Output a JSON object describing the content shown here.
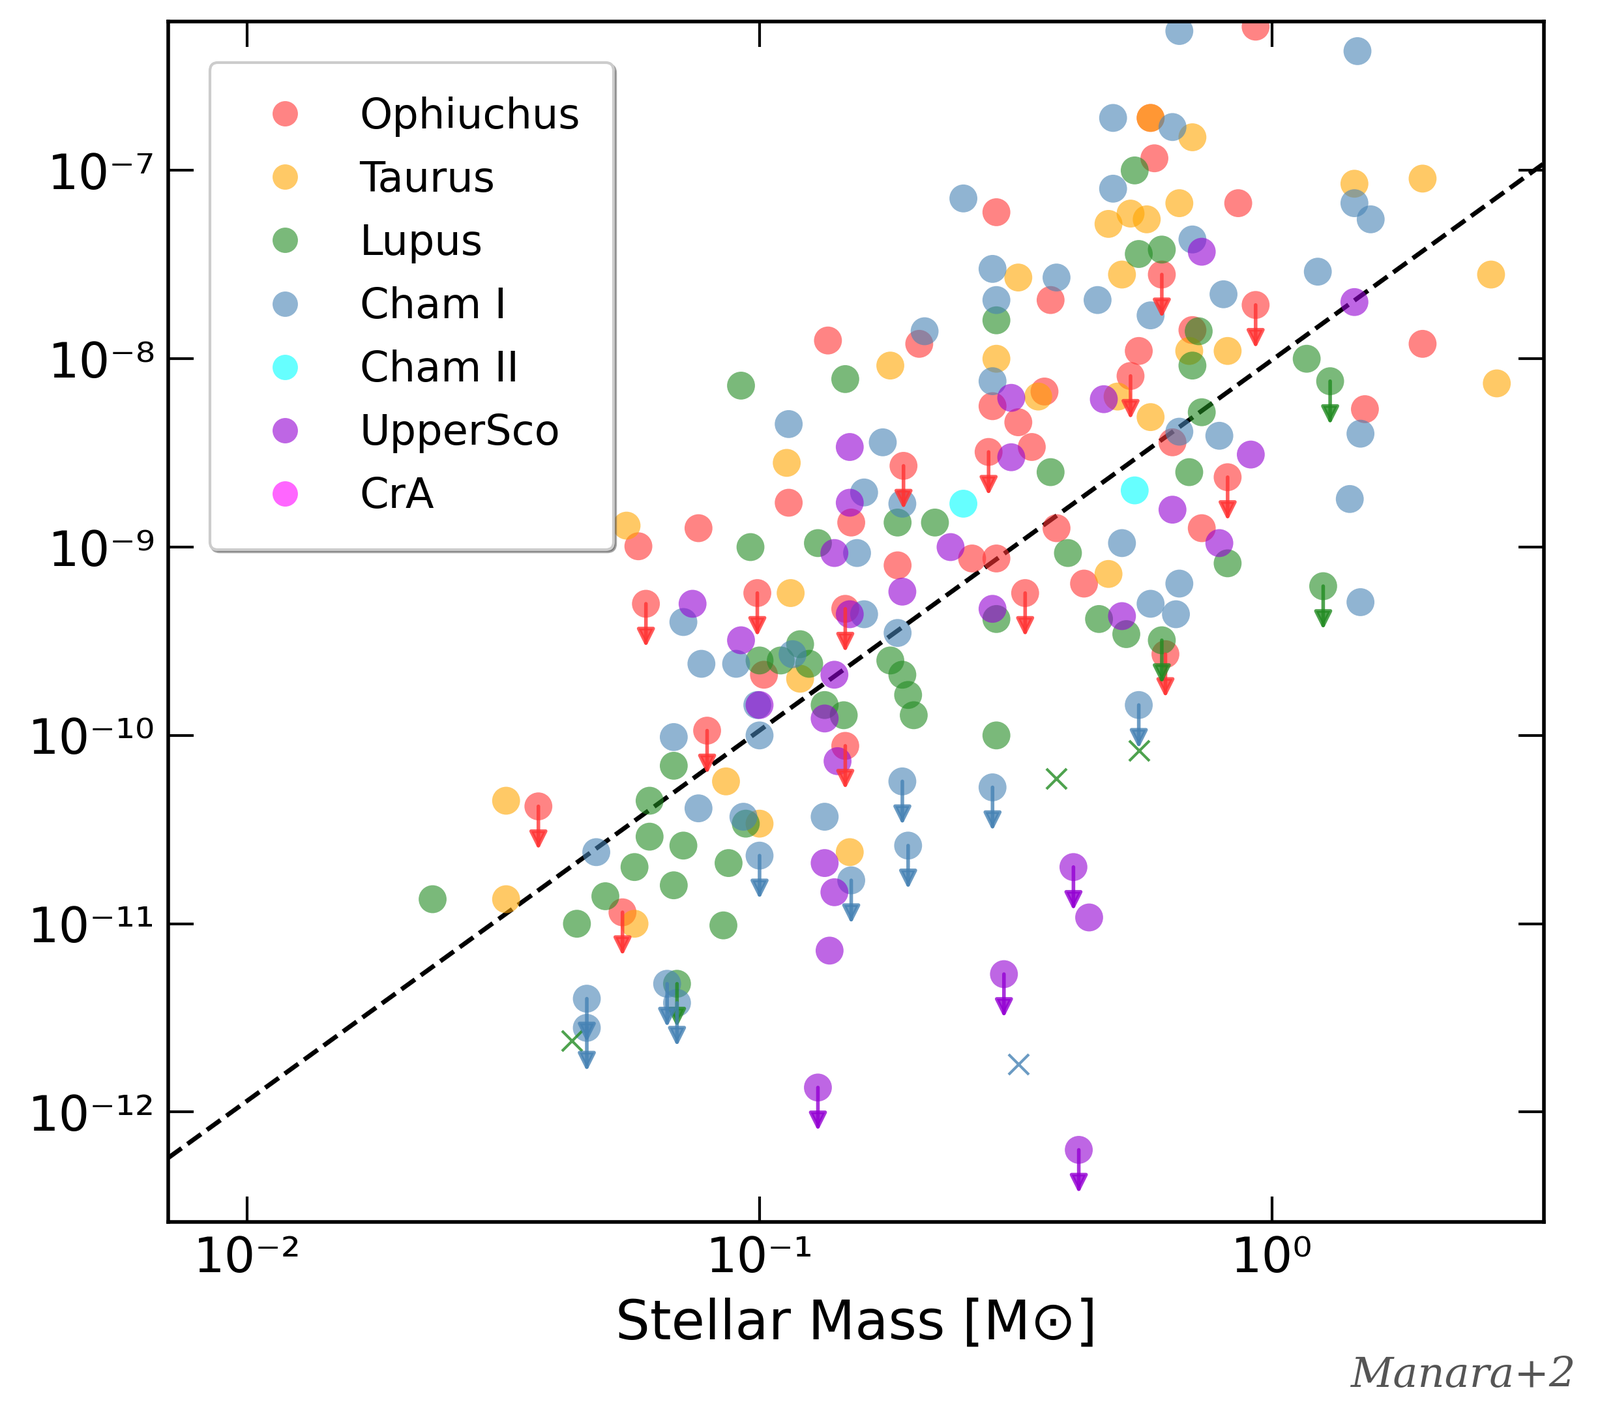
{
  "chart_data": {
    "type": "scatter",
    "x_label": "Stellar Mass [M⊙]",
    "annotations": [
      "Manara+2"
    ],
    "log": true,
    "legend": "upper left",
    "xlim": [
      0.007,
      3.4
    ],
    "ylim": [
      2.6e-13,
      6.2e-07
    ],
    "xticks": [
      {
        "value": 0.01,
        "label": "10⁻²"
      },
      {
        "value": 0.1,
        "label": "10⁻¹"
      },
      {
        "value": 1,
        "label": "10⁰"
      }
    ],
    "yticks": [
      {
        "value": 1e-12,
        "label": "10⁻¹²"
      },
      {
        "value": 1e-11,
        "label": "10⁻¹¹"
      },
      {
        "value": 1e-10,
        "label": "10⁻¹⁰"
      },
      {
        "value": 1e-09,
        "label": "10⁻⁹"
      },
      {
        "value": 1e-08,
        "label": "10⁻⁸"
      },
      {
        "value": 1e-07,
        "label": "10⁻⁷"
      }
    ],
    "series": [
      {
        "name": "Ophiuchus",
        "color": "#ff3333",
        "x": [
          0.93,
          0.29,
          0.86,
          0.59,
          0.58,
          0.37,
          0.136,
          0.205,
          0.36,
          0.285,
          0.32,
          0.34,
          0.114,
          0.151,
          0.076,
          0.058,
          0.26,
          0.29,
          0.186,
          0.43,
          0.38,
          0.55,
          0.7,
          0.64,
          0.73,
          1.52,
          1.97,
          0.102
        ],
        "values": [
          5.8e-07,
          6e-08,
          6.7e-08,
          1.16e-07,
          1.9e-07,
          2.05e-08,
          1.25e-08,
          1.2e-08,
          6.7e-09,
          5.6e-09,
          4.6e-09,
          3.4e-09,
          1.72e-09,
          1.35e-09,
          1.26e-09,
          1.01e-09,
          8.7e-10,
          8.7e-10,
          8e-10,
          6.4e-10,
          1.26e-09,
          1.1e-08,
          1.42e-08,
          3.6e-09,
          1.26e-09,
          5.4e-09,
          1.2e-08,
          2.1e-10
        ],
        "upper_limit_x": [
          0.06,
          0.037,
          0.079,
          0.099,
          0.191,
          0.28,
          0.33,
          0.93,
          0.82,
          0.61,
          0.53,
          0.147,
          0.147,
          0.62,
          0.054
        ],
        "upper_limit_values": [
          5e-10,
          4.2e-11,
          1.06e-10,
          5.7e-10,
          2.7e-09,
          3.2e-09,
          5.7e-10,
          1.93e-08,
          2.35e-09,
          2.8e-08,
          8.1e-09,
          4.7e-10,
          8.8e-11,
          2.7e-10,
          1.15e-11
        ]
      },
      {
        "name": "Taurus",
        "color": "#ffa500",
        "x": [
          0.055,
          0.032,
          0.032,
          0.057,
          0.086,
          0.1,
          0.115,
          0.12,
          0.113,
          0.18,
          0.32,
          0.29,
          0.35,
          0.48,
          0.53,
          0.57,
          0.51,
          0.58,
          0.7,
          0.66,
          0.5,
          0.58,
          0.69,
          0.82,
          1.45,
          1.97,
          2.68,
          2.75,
          0.48,
          0.15
        ],
        "values": [
          1.3e-09,
          4.5e-11,
          1.35e-11,
          1e-11,
          5.7e-11,
          3.4e-11,
          5.7e-10,
          2e-10,
          2.8e-09,
          9.2e-09,
          2.7e-08,
          1e-08,
          6.3e-09,
          5.2e-08,
          5.9e-08,
          5.5e-08,
          2.8e-08,
          1.9e-07,
          1.5e-07,
          6.7e-08,
          6.3e-09,
          4.9e-09,
          1.1e-08,
          1.1e-08,
          8.5e-08,
          9.05e-08,
          2.8e-08,
          7.4e-09,
          7.2e-10,
          2.4e-11
        ],
        "upper_limit_x": [],
        "upper_limit_values": []
      },
      {
        "name": "Lupus",
        "color": "#228b22",
        "x": [
          0.023,
          0.044,
          0.05,
          0.085,
          0.061,
          0.068,
          0.071,
          0.068,
          0.057,
          0.061,
          0.087,
          0.094,
          0.1,
          0.11,
          0.12,
          0.125,
          0.13,
          0.096,
          0.092,
          0.147,
          0.134,
          0.146,
          0.18,
          0.19,
          0.195,
          0.2,
          0.186,
          0.22,
          0.29,
          0.29,
          0.29,
          0.37,
          0.4,
          0.46,
          0.52,
          0.54,
          0.55,
          0.61,
          0.7,
          0.72,
          0.69,
          0.73,
          0.82,
          1.17
        ],
        "values": [
          1.35e-11,
          1e-11,
          1.4e-11,
          9.8e-12,
          4.5e-11,
          6.9e-11,
          2.6e-11,
          1.6e-11,
          2e-11,
          2.9e-11,
          2.1e-11,
          3.4e-11,
          2.5e-10,
          2.5e-10,
          3.05e-10,
          2.4e-10,
          1.05e-09,
          1e-09,
          7.2e-09,
          7.8e-09,
          1.45e-10,
          1.28e-10,
          2.5e-10,
          2.1e-10,
          1.64e-10,
          1.28e-10,
          1.35e-09,
          1.35e-09,
          1.6e-08,
          4.15e-10,
          1e-10,
          2.5e-09,
          9.3e-10,
          4.15e-10,
          3.45e-10,
          1e-07,
          3.6e-08,
          3.8e-08,
          9.2e-09,
          1.4e-08,
          2.5e-09,
          5.2e-09,
          8.2e-10,
          1e-08
        ],
        "upper_limit_x": [
          0.069,
          1.26,
          1.3,
          0.61
        ],
        "upper_limit_values": [
          4.8e-12,
          6.2e-10,
          7.6e-09,
          3.2e-10
        ]
      },
      {
        "name": "Cham I",
        "color": "#4682b4",
        "x": [
          0.66,
          1.47,
          0.49,
          0.64,
          0.25,
          0.49,
          1.45,
          1.56,
          0.285,
          0.29,
          0.38,
          0.457,
          0.7,
          0.805,
          1.23,
          0.21,
          0.114,
          0.174,
          0.16,
          0.19,
          0.285,
          0.58,
          0.66,
          0.79,
          1.49,
          1.42,
          1.49,
          0.65,
          0.58,
          0.66,
          0.51,
          0.071,
          0.077,
          0.09,
          0.116,
          0.1,
          0.099,
          0.076,
          0.068,
          0.048,
          0.093,
          0.134,
          0.186,
          0.16,
          0.155
        ],
        "values": [
          5.5e-07,
          4.3e-07,
          1.9e-07,
          1.7e-07,
          7.1e-08,
          8e-08,
          6.7e-08,
          5.5e-08,
          3e-08,
          2.05e-08,
          2.7e-08,
          2.05e-08,
          4.3e-08,
          2.2e-08,
          2.9e-08,
          1.4e-08,
          4.5e-09,
          3.6e-09,
          1.95e-09,
          1.7e-09,
          7.6e-09,
          1.7e-08,
          4.1e-09,
          3.9e-09,
          4e-09,
          1.8e-09,
          5.1e-10,
          4.4e-10,
          5e-10,
          6.4e-10,
          1.05e-09,
          4e-10,
          2.4e-10,
          2.4e-10,
          2.7e-10,
          1e-10,
          1.45e-10,
          4.1e-11,
          9.8e-11,
          2.4e-11,
          3.7e-11,
          3.7e-11,
          3.5e-10,
          4.4e-10,
          9.3e-10
        ],
        "upper_limit_x": [
          0.046,
          0.046,
          0.066,
          0.069,
          0.1,
          0.19,
          0.195,
          0.285,
          0.55,
          0.151
        ],
        "upper_limit_values": [
          4e-12,
          2.8e-12,
          4.8e-12,
          3.8e-12,
          2.3e-11,
          5.7e-11,
          2.6e-11,
          5.3e-11,
          1.45e-10,
          1.7e-11
        ]
      },
      {
        "name": "Cham II",
        "color": "#00ffff",
        "x": [
          0.25,
          0.54
        ],
        "values": [
          1.7e-09,
          2e-09
        ],
        "upper_limit_x": [],
        "upper_limit_values": []
      },
      {
        "name": "UpperSco",
        "color": "#9400d3",
        "x": [
          0.73,
          1.45,
          0.91,
          0.79,
          0.64,
          0.47,
          0.31,
          0.31,
          0.15,
          0.15,
          0.14,
          0.15,
          0.19,
          0.236,
          0.285,
          0.51,
          0.074,
          0.092,
          0.1,
          0.14,
          0.134,
          0.142,
          0.134,
          0.14,
          0.137,
          0.44
        ],
        "values": [
          3.7e-08,
          2e-08,
          3.1e-09,
          1.05e-09,
          1.58e-09,
          6.1e-09,
          6.2e-09,
          3e-09,
          3.4e-09,
          1.72e-09,
          9.3e-10,
          4.4e-10,
          5.8e-10,
          1e-09,
          4.7e-10,
          4.3e-10,
          5e-10,
          3.2e-10,
          1.45e-10,
          2.1e-10,
          1.23e-10,
          7.3e-11,
          2.1e-11,
          1.47e-11,
          7.2e-12,
          1.08e-11
        ],
        "upper_limit_x": [
          0.41,
          0.3,
          0.13,
          0.42
        ],
        "upper_limit_values": [
          2e-11,
          5.4e-12,
          1.35e-12,
          6.3e-13
        ]
      },
      {
        "name": "CrA",
        "color": "#ff00ff",
        "x": [],
        "values": [],
        "upper_limit_x": [],
        "upper_limit_values": []
      },
      {
        "marker": "x",
        "color": "#228b22",
        "x": [
          0.043,
          0.38,
          0.55
        ],
        "values": [
          2.4e-12,
          5.9e-11,
          8.3e-11
        ]
      },
      {
        "marker": "x",
        "color": "#4682b4",
        "x": [
          0.32
        ],
        "values": [
          1.8e-12
        ]
      },
      {
        "type": "line",
        "line_style": "dashed",
        "color": "#000000",
        "x": [
          0.007,
          3.4
        ],
        "values": [
          5.7e-13,
          1.09e-07
        ]
      }
    ]
  }
}
